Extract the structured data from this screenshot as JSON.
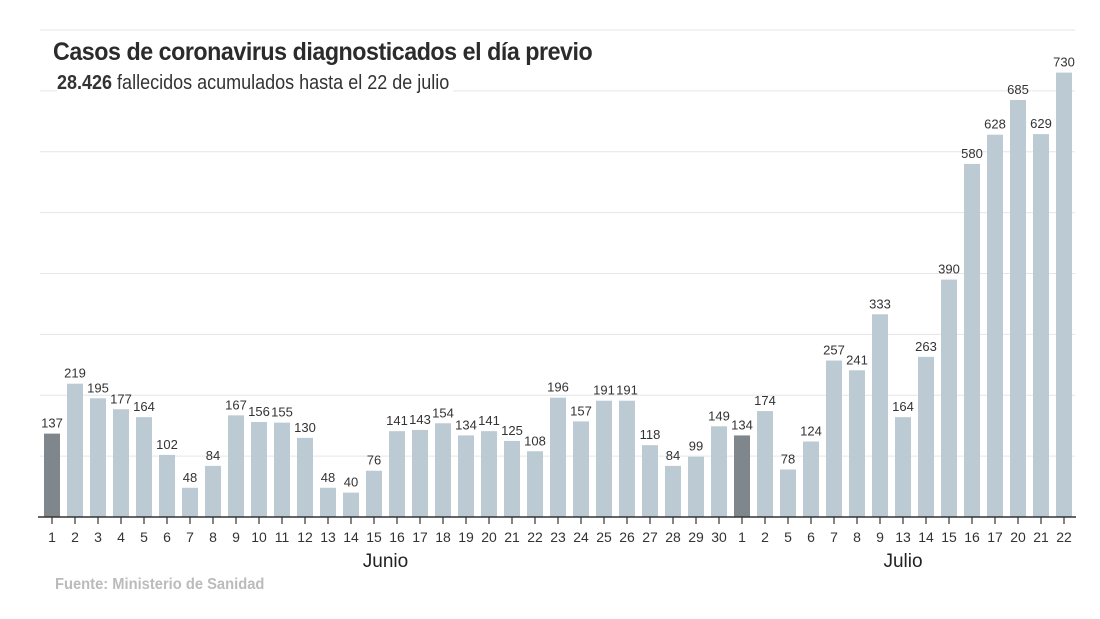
{
  "chart_data": {
    "type": "bar",
    "title": "Casos de coronavirus diagnosticados el día previo",
    "subtitle_bold": "28.426",
    "subtitle_rest": " fallecidos acumulados hasta el 22 de julio",
    "source": "Fuente: Ministerio de Sanidad",
    "categories": [
      "1",
      "2",
      "3",
      "4",
      "5",
      "6",
      "7",
      "8",
      "9",
      "10",
      "11",
      "12",
      "13",
      "14",
      "15",
      "16",
      "17",
      "18",
      "19",
      "20",
      "21",
      "22",
      "23",
      "24",
      "25",
      "26",
      "27",
      "28",
      "29",
      "30",
      "1",
      "2",
      "5",
      "6",
      "7",
      "8",
      "9",
      "13",
      "14",
      "15",
      "16",
      "17",
      "20",
      "21",
      "22"
    ],
    "values": [
      137,
      219,
      195,
      177,
      164,
      102,
      48,
      84,
      167,
      156,
      155,
      130,
      48,
      40,
      76,
      141,
      143,
      154,
      134,
      141,
      125,
      108,
      196,
      157,
      191,
      191,
      118,
      84,
      99,
      149,
      134,
      174,
      78,
      124,
      257,
      241,
      333,
      164,
      263,
      390,
      580,
      628,
      685,
      629,
      730
    ],
    "highlighted": [
      0,
      30
    ],
    "months": [
      {
        "label": "Junio",
        "from": 0,
        "to": 29
      },
      {
        "label": "Julio",
        "from": 30,
        "to": 44
      }
    ],
    "ylim": [
      0,
      800
    ],
    "grid": true,
    "colors": {
      "bar": "#bccad3",
      "highlight": "#7f868c",
      "grid": "#e6e6e6",
      "axis": "#333333"
    }
  }
}
